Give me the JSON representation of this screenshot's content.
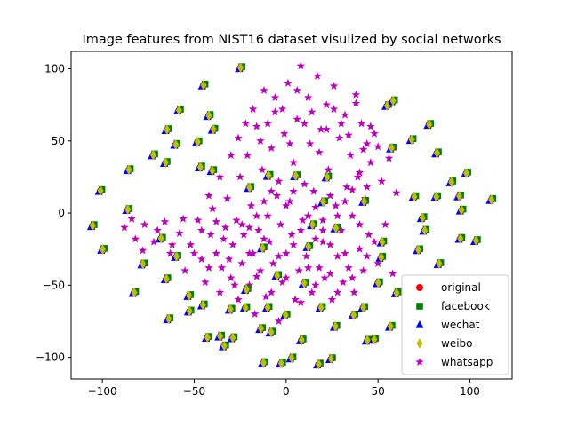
{
  "chart_data": {
    "type": "scatter",
    "title": "Image features from NIST16 dataset visulized by social networks",
    "xlabel": "",
    "ylabel": "",
    "xlim": [
      -117,
      123
    ],
    "ylim": [
      -115,
      112
    ],
    "xticks": [
      -100,
      -50,
      0,
      50,
      100
    ],
    "yticks": [
      -100,
      -50,
      0,
      50,
      100
    ],
    "grid": false,
    "legend_position": "lower-right",
    "series": [
      {
        "name": "original",
        "marker": "circle",
        "color": "#ff0000"
      },
      {
        "name": "facebook",
        "marker": "square",
        "color": "#008000"
      },
      {
        "name": "wechat",
        "marker": "triangle",
        "color": "#0000ff"
      },
      {
        "name": "weibo",
        "marker": "diamond",
        "color": "#bfbf00"
      },
      {
        "name": "whatsapp",
        "marker": "star",
        "color": "#bf00bf"
      }
    ],
    "clusters": [
      [
        -105,
        -8
      ],
      [
        -101,
        16
      ],
      [
        -100,
        -25
      ],
      [
        -86,
        30
      ],
      [
        -86,
        3
      ],
      [
        -78,
        -35
      ],
      [
        -83,
        -55
      ],
      [
        -72,
        41
      ],
      [
        -68,
        -17
      ],
      [
        -65,
        58
      ],
      [
        -66,
        35
      ],
      [
        -65,
        -45
      ],
      [
        -64,
        -73
      ],
      [
        -60,
        -30
      ],
      [
        -58,
        72
      ],
      [
        -60,
        48
      ],
      [
        -53,
        -57
      ],
      [
        -53,
        -68
      ],
      [
        -48,
        50
      ],
      [
        -45,
        89
      ],
      [
        -47,
        32
      ],
      [
        -45,
        -63
      ],
      [
        -42,
        68
      ],
      [
        -43,
        -86
      ],
      [
        -40,
        58
      ],
      [
        -40,
        30
      ],
      [
        -36,
        -85
      ],
      [
        -34,
        -92
      ],
      [
        -30,
        -66
      ],
      [
        -29,
        -86
      ],
      [
        -25,
        101
      ],
      [
        -22,
        -53
      ],
      [
        -22,
        -65
      ],
      [
        -20,
        18
      ],
      [
        -14,
        -80
      ],
      [
        -12,
        -103
      ],
      [
        -10,
        -65
      ],
      [
        -13,
        -24
      ],
      [
        -10,
        26
      ],
      [
        -8,
        -82
      ],
      [
        -5,
        -43
      ],
      [
        -3,
        -104
      ],
      [
        0,
        -70
      ],
      [
        3,
        -100
      ],
      [
        5,
        26
      ],
      [
        8,
        -88
      ],
      [
        10,
        -48
      ],
      [
        12,
        -23
      ],
      [
        14,
        -8
      ],
      [
        18,
        -104
      ],
      [
        19,
        -65
      ],
      [
        20,
        8
      ],
      [
        24,
        -101
      ],
      [
        27,
        -78
      ],
      [
        27,
        -10
      ],
      [
        22,
        25
      ],
      [
        37,
        -70
      ],
      [
        42,
        -65
      ],
      [
        44,
        -88
      ],
      [
        42,
        8
      ],
      [
        48,
        -87
      ],
      [
        50,
        -48
      ],
      [
        52,
        -20
      ],
      [
        52,
        -30
      ],
      [
        55,
        75
      ],
      [
        58,
        78
      ],
      [
        57,
        45
      ],
      [
        57,
        -78
      ],
      [
        60,
        -55
      ],
      [
        68,
        51
      ],
      [
        70,
        12
      ],
      [
        72,
        -25
      ],
      [
        74,
        -3
      ],
      [
        75,
        -12
      ],
      [
        78,
        62
      ],
      [
        82,
        42
      ],
      [
        83,
        -35
      ],
      [
        82,
        12
      ],
      [
        90,
        22
      ],
      [
        94,
        12
      ],
      [
        95,
        2
      ],
      [
        95,
        -17
      ],
      [
        98,
        28
      ],
      [
        103,
        -19
      ],
      [
        112,
        10
      ]
    ],
    "whatsapp_points": [
      [
        -88,
        -10
      ],
      [
        -82,
        -18
      ],
      [
        -77,
        -8
      ],
      [
        -72,
        -20
      ],
      [
        -66,
        -6
      ],
      [
        -63,
        -28
      ],
      [
        -58,
        -14
      ],
      [
        -55,
        -40
      ],
      [
        -52,
        -22
      ],
      [
        -48,
        -5
      ],
      [
        -46,
        -32
      ],
      [
        -44,
        -48
      ],
      [
        -41,
        -15
      ],
      [
        -40,
        3
      ],
      [
        -38,
        -28
      ],
      [
        -36,
        -55
      ],
      [
        -35,
        -38
      ],
      [
        -33,
        -10
      ],
      [
        -32,
        10
      ],
      [
        -30,
        -45
      ],
      [
        -29,
        -22
      ],
      [
        -27,
        -5
      ],
      [
        -26,
        -60
      ],
      [
        -25,
        25
      ],
      [
        -24,
        -35
      ],
      [
        -23,
        -15
      ],
      [
        -21,
        40
      ],
      [
        -20,
        -50
      ],
      [
        -19,
        5
      ],
      [
        -18,
        -28
      ],
      [
        -17,
        -70
      ],
      [
        -16,
        60
      ],
      [
        -15,
        -12
      ],
      [
        -14,
        -40
      ],
      [
        -13,
        30
      ],
      [
        -12,
        85
      ],
      [
        -11,
        -58
      ],
      [
        -10,
        -2
      ],
      [
        -9,
        -20
      ],
      [
        -8,
        45
      ],
      [
        -7,
        -35
      ],
      [
        -6,
        70
      ],
      [
        -5,
        12
      ],
      [
        -4,
        -75
      ],
      [
        -3,
        -8
      ],
      [
        -2,
        -48
      ],
      [
        -1,
        55
      ],
      [
        0,
        -28
      ],
      [
        1,
        90
      ],
      [
        2,
        8
      ],
      [
        3,
        -15
      ],
      [
        4,
        35
      ],
      [
        5,
        -60
      ],
      [
        6,
        65
      ],
      [
        7,
        -40
      ],
      [
        8,
        102
      ],
      [
        9,
        -5
      ],
      [
        10,
        20
      ],
      [
        11,
        -30
      ],
      [
        12,
        80
      ],
      [
        13,
        48
      ],
      [
        14,
        -55
      ],
      [
        15,
        15
      ],
      [
        16,
        -18
      ],
      [
        17,
        95
      ],
      [
        18,
        -38
      ],
      [
        19,
        58
      ],
      [
        20,
        -5
      ],
      [
        21,
        -45
      ],
      [
        22,
        75
      ],
      [
        23,
        30
      ],
      [
        24,
        -22
      ],
      [
        25,
        -60
      ],
      [
        26,
        88
      ],
      [
        27,
        5
      ],
      [
        28,
        -30
      ],
      [
        29,
        52
      ],
      [
        30,
        -12
      ],
      [
        31,
        -48
      ],
      [
        32,
        68
      ],
      [
        33,
        18
      ],
      [
        34,
        -38
      ],
      [
        35,
        40
      ],
      [
        36,
        -2
      ],
      [
        37,
        -55
      ],
      [
        38,
        82
      ],
      [
        39,
        25
      ],
      [
        40,
        -25
      ],
      [
        41,
        62
      ],
      [
        42,
        -40
      ],
      [
        43,
        10
      ],
      [
        44,
        48
      ],
      [
        45,
        -15
      ],
      [
        46,
        35
      ],
      [
        48,
        55
      ],
      [
        50,
        -35
      ],
      [
        52,
        22
      ],
      [
        54,
        -8
      ],
      [
        56,
        38
      ],
      [
        58,
        -42
      ],
      [
        60,
        14
      ],
      [
        -84,
        -4
      ],
      [
        -78,
        -26
      ],
      [
        -70,
        -12
      ],
      [
        -62,
        -22
      ],
      [
        -56,
        -4
      ],
      [
        -50,
        -28
      ],
      [
        -46,
        -12
      ],
      [
        -42,
        -38
      ],
      [
        -38,
        -6
      ],
      [
        -34,
        -18
      ],
      [
        -31,
        -32
      ],
      [
        -28,
        -50
      ],
      [
        -24,
        -8
      ],
      [
        -20,
        -28
      ],
      [
        -16,
        -44
      ],
      [
        -12,
        -18
      ],
      [
        -8,
        -55
      ],
      [
        -4,
        -30
      ],
      [
        0,
        -45
      ],
      [
        4,
        -22
      ],
      [
        8,
        -62
      ],
      [
        12,
        -38
      ],
      [
        16,
        -50
      ],
      [
        20,
        -20
      ],
      [
        24,
        -42
      ],
      [
        28,
        -55
      ],
      [
        32,
        -28
      ],
      [
        36,
        -45
      ],
      [
        40,
        -8
      ],
      [
        44,
        -30
      ],
      [
        48,
        -20
      ],
      [
        -42,
        12
      ],
      [
        -36,
        25
      ],
      [
        -30,
        40
      ],
      [
        -26,
        52
      ],
      [
        -22,
        62
      ],
      [
        -18,
        72
      ],
      [
        -14,
        50
      ],
      [
        -10,
        62
      ],
      [
        -6,
        80
      ],
      [
        -2,
        72
      ],
      [
        2,
        48
      ],
      [
        6,
        85
      ],
      [
        10,
        62
      ],
      [
        14,
        70
      ],
      [
        18,
        42
      ],
      [
        22,
        58
      ],
      [
        26,
        72
      ],
      [
        30,
        62
      ],
      [
        34,
        54
      ],
      [
        38,
        76
      ],
      [
        42,
        44
      ],
      [
        46,
        60
      ],
      [
        50,
        46
      ],
      [
        -20,
        -10
      ],
      [
        -16,
        -2
      ],
      [
        -12,
        8
      ],
      [
        -8,
        15
      ],
      [
        -4,
        22
      ],
      [
        0,
        5
      ],
      [
        4,
        15
      ],
      [
        8,
        -12
      ],
      [
        12,
        -2
      ],
      [
        16,
        4
      ],
      [
        20,
        -12
      ],
      [
        24,
        12
      ],
      [
        28,
        -2
      ],
      [
        32,
        8
      ],
      [
        36,
        16
      ],
      [
        40,
        28
      ],
      [
        44,
        18
      ]
    ]
  }
}
